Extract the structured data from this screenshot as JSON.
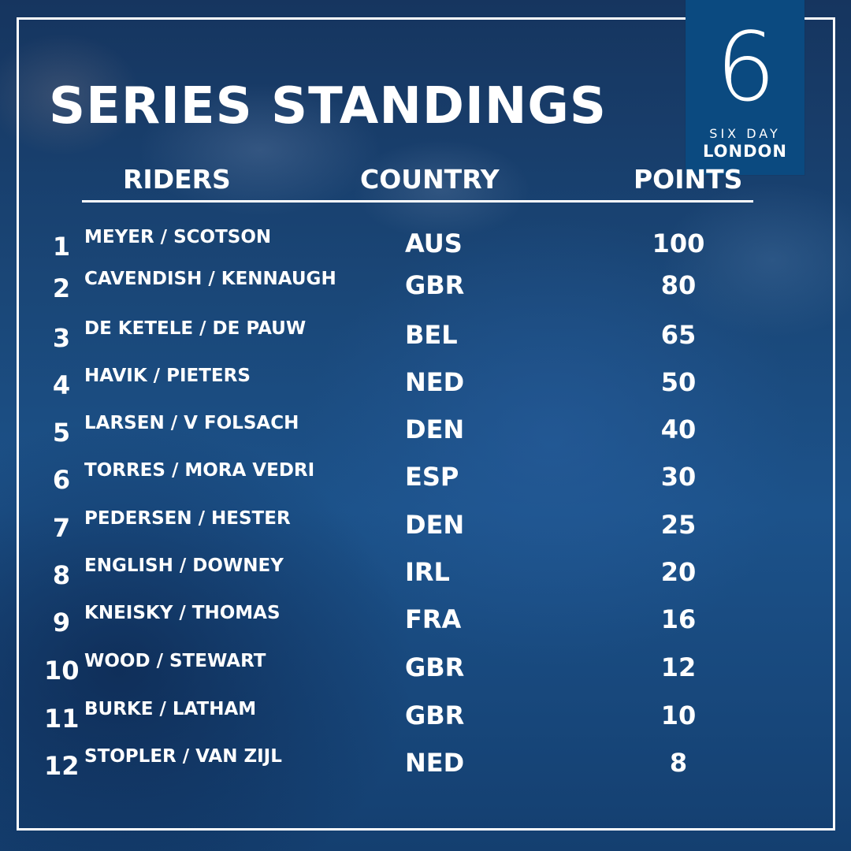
{
  "title": "SERIES STANDINGS",
  "logo": {
    "numeral": "6",
    "line1": "SIX DAY",
    "line2": "LONDON"
  },
  "columns": {
    "riders": "RIDERS",
    "country": "COUNTRY",
    "points": "POINTS"
  },
  "standings": [
    {
      "rank": "1",
      "riders": "MEYER / SCOTSON",
      "country": "AUS",
      "points": "100"
    },
    {
      "rank": "2",
      "riders": "CAVENDISH / KENNAUGH",
      "country": "GBR",
      "points": "80"
    },
    {
      "rank": "3",
      "riders": "DE KETELE / DE PAUW",
      "country": "BEL",
      "points": "65"
    },
    {
      "rank": "4",
      "riders": "HAVIK / PIETERS",
      "country": "NED",
      "points": "50"
    },
    {
      "rank": "5",
      "riders": "LARSEN / V FOLSACH",
      "country": "DEN",
      "points": "40"
    },
    {
      "rank": "6",
      "riders": "TORRES / MORA VEDRI",
      "country": "ESP",
      "points": "30"
    },
    {
      "rank": "7",
      "riders": "PEDERSEN / HESTER",
      "country": "DEN",
      "points": "25"
    },
    {
      "rank": "8",
      "riders": "ENGLISH / DOWNEY",
      "country": "IRL",
      "points": "20"
    },
    {
      "rank": "9",
      "riders": "KNEISKY / THOMAS",
      "country": "FRA",
      "points": "16"
    },
    {
      "rank": "10",
      "riders": "WOOD / STEWART",
      "country": "GBR",
      "points": "12"
    },
    {
      "rank": "11",
      "riders": "BURKE / LATHAM",
      "country": "GBR",
      "points": "10"
    },
    {
      "rank": "12",
      "riders": "STOPLER / VAN ZIJL",
      "country": "NED",
      "points": "8"
    }
  ],
  "colors": {
    "background": "#1a4778",
    "logo_box": "#0b4a80",
    "text": "#ffffff"
  }
}
